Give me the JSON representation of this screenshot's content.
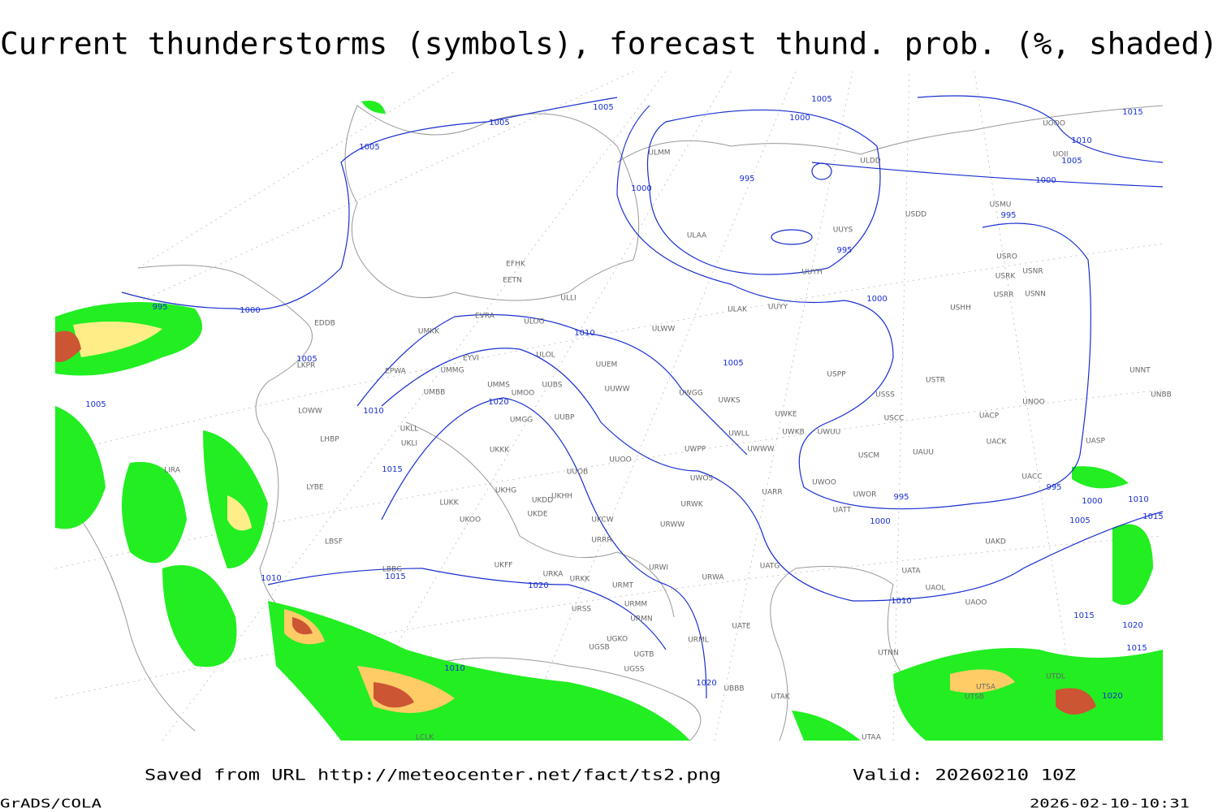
{
  "title": "Current thunderstorms (symbols), forecast thund. prob. (%, shaded)",
  "footer": {
    "source": "Saved from URL http://meteocenter.net/fact/ts2.png",
    "valid": "Valid: 20260210 10Z",
    "software": "GrADS/COLA",
    "timestamp": "2026-02-10-10:31"
  },
  "isobar_labels": [
    1005,
    1005,
    1005,
    1005,
    1000,
    1015,
    1010,
    1005,
    1000,
    995,
    1000,
    995,
    995,
    1000,
    995,
    1000,
    1010,
    1005,
    1005,
    1005,
    1020,
    1010,
    1015,
    995,
    995,
    1000,
    1010,
    1015,
    1005,
    1000,
    1010,
    1015,
    1020,
    1010,
    1015,
    1020,
    1015,
    1010,
    1020,
    1020
  ],
  "stations": [
    "ULMM",
    "ULDD",
    "USDD",
    "USMU",
    "ULAA",
    "UUYS",
    "UUYH",
    "USRO",
    "USRK",
    "USNR",
    "USRR",
    "USNN",
    "EFHK",
    "EETN",
    "ULLI",
    "USHH",
    "ULAK",
    "UUYY",
    "EVRA",
    "ULOO",
    "EDDB",
    "UMKK",
    "ULWW",
    "ULOL",
    "EYVI",
    "UUEM",
    "LKPR",
    "EPWA",
    "UMMG",
    "USPP",
    "USTR",
    "UMMS",
    "UUBS",
    "UUWW",
    "UMOO",
    "UMBB",
    "UWGG",
    "USSS",
    "UWKS",
    "UNOO",
    "LOWW",
    "UWKE",
    "UACP",
    "UMGG",
    "UUBP",
    "UKLL",
    "UWKB",
    "UWUU",
    "USCC",
    "UWLL",
    "LHBP",
    "UKLI",
    "UACK",
    "UASP",
    "UKKK",
    "UWPP",
    "UWWW",
    "USCM",
    "UAUU",
    "UUOO",
    "LIRA",
    "UUOB",
    "UWOS",
    "UACC",
    "LYBE",
    "UARR",
    "UWOO",
    "UWOR",
    "UKHG",
    "UKDD",
    "UKHH",
    "LUKK",
    "UKDE",
    "URWK",
    "UKOO",
    "UKCW",
    "URWW",
    "UATT",
    "UAKD",
    "LBSF",
    "URRR",
    "UKFF",
    "URWI",
    "UATG",
    "LBBG",
    "URKA",
    "URKK",
    "URWA",
    "UATA",
    "URMT",
    "UAOL",
    "URMM",
    "URSS",
    "UATE",
    "UAOO",
    "URMN",
    "UGKO",
    "UGSB",
    "UGTB",
    "URML",
    "UTNN",
    "UTDL",
    "UBBB",
    "UTAK",
    "UTSA",
    "UTSB",
    "UTAA",
    "LCLK",
    "UGSS",
    "UNNT",
    "UNBB",
    "UOOO",
    "UOII"
  ]
}
